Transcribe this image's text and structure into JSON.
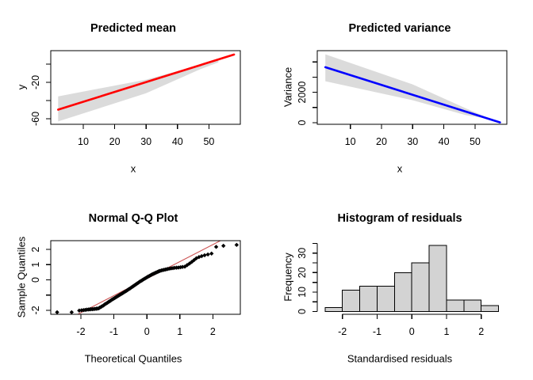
{
  "figure": {
    "background": "#ffffff",
    "text_color": "#000000"
  },
  "chart_data": [
    {
      "id": "predicted-mean",
      "type": "line",
      "title": "Predicted mean",
      "xlabel": "x",
      "ylabel": "y",
      "frame": "box",
      "xlim": [
        -0.35,
        60.0
      ],
      "ylim": [
        -66.1,
        14.8
      ],
      "x_ticks": [
        10,
        20,
        30,
        40,
        50
      ],
      "y_ticks": [
        {
          "v": -60,
          "label": "-60"
        },
        {
          "v": -40,
          "label": ""
        },
        {
          "v": -20,
          "label": "-20"
        },
        {
          "v": 0,
          "label": ""
        }
      ],
      "band": {
        "color": "#dbdbdb",
        "upper": [
          [
            2,
            -35.4
          ],
          [
            30,
            -17
          ],
          [
            47,
            -1
          ],
          [
            53,
            6
          ]
        ],
        "lower": [
          [
            2,
            -63
          ],
          [
            30,
            -32
          ],
          [
            47,
            -6
          ],
          [
            53,
            2
          ]
        ]
      },
      "line": {
        "color": "#ff0000",
        "width": 2.6,
        "points": [
          [
            2,
            -50
          ],
          [
            58,
            10.5
          ]
        ]
      }
    },
    {
      "id": "predicted-variance",
      "type": "line",
      "title": "Predicted variance",
      "xlabel": "x",
      "ylabel": "Variance",
      "frame": "box",
      "xlim": [
        -0.6,
        60.2
      ],
      "ylim": [
        -104,
        4740
      ],
      "x_ticks": [
        10,
        20,
        30,
        40,
        50
      ],
      "y_ticks": [
        {
          "v": 0,
          "label": "0"
        },
        {
          "v": 1000,
          "label": ""
        },
        {
          "v": 2000,
          "label": "2000"
        },
        {
          "v": 3000,
          "label": ""
        },
        {
          "v": 4000,
          "label": ""
        }
      ],
      "band": {
        "color": "#dbdbdb",
        "upper": [
          [
            2,
            4500
          ],
          [
            30,
            2520
          ],
          [
            47,
            950
          ],
          [
            53,
            420
          ]
        ],
        "lower": [
          [
            2,
            2730
          ],
          [
            30,
            1480
          ],
          [
            47,
            500
          ],
          [
            53,
            300
          ]
        ]
      },
      "line": {
        "color": "#0000ff",
        "width": 2.6,
        "points": [
          [
            2,
            3650
          ],
          [
            58,
            20
          ]
        ]
      }
    },
    {
      "id": "qq-plot",
      "type": "scatter",
      "title": "Normal Q-Q Plot",
      "xlabel": "Theoretical Quantiles",
      "ylabel": "Sample Quantiles",
      "frame": "box",
      "xlim": [
        -2.913,
        2.832
      ],
      "ylim": [
        -2.266,
        2.578
      ],
      "x_ticks": [
        -2,
        -1,
        0,
        1,
        2
      ],
      "y_ticks": [
        {
          "v": -2,
          "label": "-2"
        },
        {
          "v": -1,
          "label": ""
        },
        {
          "v": 0,
          "label": "0"
        },
        {
          "v": 1,
          "label": "1"
        },
        {
          "v": 2,
          "label": "2"
        }
      ],
      "refline": {
        "color": "#cc5555",
        "width": 1.1,
        "points": [
          [
            -3,
            -3.28
          ],
          [
            3,
            3.44
          ]
        ]
      },
      "marker": {
        "shape": "diamond",
        "color": "#000000",
        "size": 2.7
      },
      "points": [
        [
          -2.72,
          -2.13
        ],
        [
          -2.28,
          -2.13
        ],
        [
          -2.05,
          -2.02
        ],
        [
          -1.98,
          -2.0
        ],
        [
          -1.92,
          -1.99
        ],
        [
          -1.87,
          -1.98
        ],
        [
          -1.82,
          -1.96
        ],
        [
          -1.77,
          -1.95
        ],
        [
          -1.73,
          -1.94
        ],
        [
          -1.69,
          -1.93
        ],
        [
          -1.65,
          -1.93
        ],
        [
          -1.61,
          -1.92
        ],
        [
          -1.57,
          -1.91
        ],
        [
          -1.53,
          -1.9
        ],
        [
          -1.5,
          -1.89
        ],
        [
          -1.46,
          -1.87
        ],
        [
          -1.43,
          -1.83
        ],
        [
          -1.39,
          -1.78
        ],
        [
          -1.36,
          -1.74
        ],
        [
          -1.32,
          -1.69
        ],
        [
          -1.29,
          -1.64
        ],
        [
          -1.26,
          -1.59
        ],
        [
          -1.22,
          -1.54
        ],
        [
          -1.19,
          -1.5
        ],
        [
          -1.16,
          -1.45
        ],
        [
          -1.13,
          -1.41
        ],
        [
          -1.1,
          -1.37
        ],
        [
          -1.07,
          -1.32
        ],
        [
          -1.04,
          -1.28
        ],
        [
          -1.01,
          -1.24
        ],
        [
          -0.98,
          -1.2
        ],
        [
          -0.95,
          -1.16
        ],
        [
          -0.92,
          -1.12
        ],
        [
          -0.89,
          -1.08
        ],
        [
          -0.86,
          -1.04
        ],
        [
          -0.83,
          -1.0
        ],
        [
          -0.8,
          -0.96
        ],
        [
          -0.77,
          -0.92
        ],
        [
          -0.74,
          -0.88
        ],
        [
          -0.71,
          -0.84
        ],
        [
          -0.68,
          -0.8
        ],
        [
          -0.65,
          -0.76
        ],
        [
          -0.62,
          -0.72
        ],
        [
          -0.59,
          -0.68
        ],
        [
          -0.56,
          -0.63
        ],
        [
          -0.53,
          -0.59
        ],
        [
          -0.5,
          -0.55
        ],
        [
          -0.47,
          -0.5
        ],
        [
          -0.44,
          -0.46
        ],
        [
          -0.41,
          -0.41
        ],
        [
          -0.38,
          -0.37
        ],
        [
          -0.35,
          -0.32
        ],
        [
          -0.32,
          -0.28
        ],
        [
          -0.29,
          -0.23
        ],
        [
          -0.26,
          -0.19
        ],
        [
          -0.23,
          -0.14
        ],
        [
          -0.2,
          -0.1
        ],
        [
          -0.17,
          -0.06
        ],
        [
          -0.14,
          -0.02
        ],
        [
          -0.11,
          0.02
        ],
        [
          -0.08,
          0.06
        ],
        [
          -0.05,
          0.1
        ],
        [
          -0.02,
          0.14
        ],
        [
          0.01,
          0.18
        ],
        [
          0.04,
          0.22
        ],
        [
          0.07,
          0.25
        ],
        [
          0.1,
          0.29
        ],
        [
          0.13,
          0.32
        ],
        [
          0.16,
          0.36
        ],
        [
          0.19,
          0.39
        ],
        [
          0.22,
          0.42
        ],
        [
          0.25,
          0.45
        ],
        [
          0.28,
          0.48
        ],
        [
          0.31,
          0.51
        ],
        [
          0.34,
          0.54
        ],
        [
          0.37,
          0.57
        ],
        [
          0.4,
          0.59
        ],
        [
          0.44,
          0.62
        ],
        [
          0.48,
          0.64
        ],
        [
          0.52,
          0.66
        ],
        [
          0.56,
          0.68
        ],
        [
          0.6,
          0.7
        ],
        [
          0.64,
          0.72
        ],
        [
          0.69,
          0.74
        ],
        [
          0.74,
          0.76
        ],
        [
          0.79,
          0.77
        ],
        [
          0.84,
          0.79
        ],
        [
          0.9,
          0.8
        ],
        [
          0.96,
          0.81
        ],
        [
          1.02,
          0.83
        ],
        [
          1.08,
          0.85
        ],
        [
          1.15,
          0.87
        ],
        [
          1.22,
          0.97
        ],
        [
          1.29,
          1.07
        ],
        [
          1.36,
          1.18
        ],
        [
          1.43,
          1.3
        ],
        [
          1.5,
          1.42
        ],
        [
          1.58,
          1.5
        ],
        [
          1.66,
          1.56
        ],
        [
          1.75,
          1.62
        ],
        [
          1.85,
          1.67
        ],
        [
          1.96,
          1.73
        ],
        [
          2.1,
          2.17
        ],
        [
          2.32,
          2.24
        ],
        [
          2.72,
          2.3
        ]
      ]
    },
    {
      "id": "residual-histogram",
      "type": "histogram",
      "title": "Histogram of residuals",
      "xlabel": "Standardised residuals",
      "ylabel": "Frequency",
      "frame": "axes",
      "xlim": [
        -2.725,
        2.738
      ],
      "ylim": [
        -1.4,
        36.4
      ],
      "x_ticks": [
        -2,
        -1,
        0,
        1,
        2
      ],
      "y_ticks": [
        {
          "v": 0,
          "label": "0"
        },
        {
          "v": 5,
          "label": ""
        },
        {
          "v": 10,
          "label": "10"
        },
        {
          "v": 15,
          "label": ""
        },
        {
          "v": 20,
          "label": "20"
        },
        {
          "v": 25,
          "label": ""
        },
        {
          "v": 30,
          "label": "30"
        },
        {
          "v": 35,
          "label": ""
        }
      ],
      "bin_start": -2.5,
      "bin_width": 0.5,
      "counts": [
        2,
        11,
        13,
        13,
        20,
        25,
        34,
        6,
        6,
        3
      ],
      "bar_fill": "#d3d3d3",
      "bar_border": "#000000"
    }
  ]
}
